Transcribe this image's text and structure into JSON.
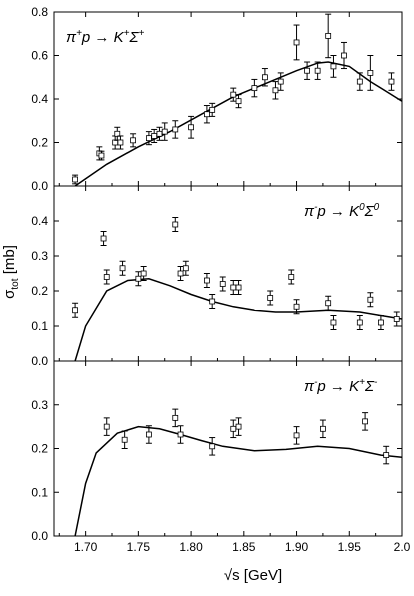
{
  "chart_data": [
    {
      "type": "scatter",
      "reaction": {
        "base": "π",
        "base_sup": "+",
        "mid": "p → K",
        "mid_sup": "+",
        "end": "Σ",
        "end_sup": "+"
      },
      "xlim": [
        1.67,
        2.0
      ],
      "ylim": [
        0,
        0.8
      ],
      "yticks": [
        "0.0",
        "0.2",
        "0.4",
        "0.6",
        "0.8"
      ],
      "series": [
        {
          "kind": "points",
          "x": [
            1.69,
            1.713,
            1.715,
            1.728,
            1.73,
            1.733,
            1.745,
            1.76,
            1.765,
            1.77,
            1.775,
            1.785,
            1.8,
            1.815,
            1.82,
            1.84,
            1.845,
            1.86,
            1.87,
            1.88,
            1.885,
            1.9,
            1.91,
            1.92,
            1.93,
            1.935,
            1.945,
            1.96,
            1.97,
            1.99
          ],
          "y": [
            0.03,
            0.15,
            0.14,
            0.2,
            0.24,
            0.2,
            0.21,
            0.22,
            0.23,
            0.24,
            0.25,
            0.26,
            0.27,
            0.33,
            0.35,
            0.42,
            0.39,
            0.45,
            0.5,
            0.44,
            0.48,
            0.66,
            0.53,
            0.53,
            0.69,
            0.55,
            0.6,
            0.48,
            0.52,
            0.48
          ],
          "err": [
            0.02,
            0.03,
            0.02,
            0.03,
            0.03,
            0.03,
            0.03,
            0.03,
            0.03,
            0.03,
            0.04,
            0.04,
            0.05,
            0.04,
            0.03,
            0.03,
            0.03,
            0.04,
            0.04,
            0.04,
            0.04,
            0.08,
            0.04,
            0.04,
            0.1,
            0.05,
            0.06,
            0.04,
            0.08,
            0.04
          ]
        },
        {
          "kind": "line",
          "x": [
            1.69,
            1.72,
            1.75,
            1.78,
            1.81,
            1.84,
            1.87,
            1.9,
            1.92,
            1.93,
            1.95,
            1.97,
            2.0
          ],
          "y": [
            0.0,
            0.1,
            0.18,
            0.25,
            0.33,
            0.41,
            0.47,
            0.53,
            0.565,
            0.57,
            0.55,
            0.48,
            0.39
          ]
        }
      ]
    },
    {
      "type": "scatter",
      "reaction": {
        "base": "π",
        "base_sup": "-",
        "mid": "p → K",
        "mid_sup": "0",
        "end": "Σ",
        "end_sup": "0"
      },
      "xlim": [
        1.67,
        2.0
      ],
      "ylim": [
        0,
        0.5
      ],
      "yticks": [
        "0.0",
        "0.1",
        "0.2",
        "0.3",
        "0.4"
      ],
      "series": [
        {
          "kind": "points",
          "x": [
            1.69,
            1.717,
            1.72,
            1.735,
            1.75,
            1.755,
            1.785,
            1.79,
            1.795,
            1.815,
            1.82,
            1.83,
            1.84,
            1.845,
            1.875,
            1.895,
            1.9,
            1.93,
            1.935,
            1.96,
            1.97,
            1.98,
            1.995
          ],
          "y": [
            0.145,
            0.35,
            0.24,
            0.265,
            0.235,
            0.25,
            0.39,
            0.25,
            0.265,
            0.23,
            0.17,
            0.22,
            0.21,
            0.21,
            0.18,
            0.24,
            0.155,
            0.165,
            0.11,
            0.11,
            0.175,
            0.11,
            0.12
          ]
        },
        {
          "kind": "line",
          "x": [
            1.69,
            1.7,
            1.72,
            1.74,
            1.76,
            1.78,
            1.8,
            1.82,
            1.84,
            1.86,
            1.88,
            1.9,
            1.93,
            1.96,
            1.99,
            2.0
          ],
          "y": [
            0.0,
            0.1,
            0.2,
            0.23,
            0.235,
            0.215,
            0.19,
            0.17,
            0.155,
            0.145,
            0.14,
            0.14,
            0.145,
            0.14,
            0.125,
            0.12
          ]
        }
      ]
    },
    {
      "type": "scatter",
      "reaction": {
        "base": "π",
        "base_sup": "-",
        "mid": "p → K",
        "mid_sup": "+",
        "end": "Σ",
        "end_sup": "-"
      },
      "xlim": [
        1.67,
        2.0
      ],
      "ylim": [
        0,
        0.4
      ],
      "yticks": [
        "0.0",
        "0.1",
        "0.2",
        "0.3"
      ],
      "series": [
        {
          "kind": "points",
          "x": [
            1.72,
            1.737,
            1.76,
            1.785,
            1.79,
            1.82,
            1.84,
            1.845,
            1.9,
            1.925,
            1.965,
            1.985
          ],
          "y": [
            0.25,
            0.22,
            0.232,
            0.27,
            0.232,
            0.205,
            0.245,
            0.25,
            0.23,
            0.245,
            0.262,
            0.185
          ]
        },
        {
          "kind": "line",
          "x": [
            1.69,
            1.7,
            1.71,
            1.73,
            1.75,
            1.77,
            1.79,
            1.81,
            1.83,
            1.86,
            1.89,
            1.92,
            1.95,
            1.98,
            2.0
          ],
          "y": [
            0.0,
            0.12,
            0.19,
            0.235,
            0.25,
            0.245,
            0.232,
            0.218,
            0.205,
            0.195,
            0.198,
            0.205,
            0.2,
            0.185,
            0.18
          ]
        }
      ]
    }
  ],
  "axes": {
    "xticks": [
      "1.70",
      "1.75",
      "1.80",
      "1.85",
      "1.90",
      "1.95",
      "2.0"
    ],
    "xlabel": "√s [GeV]",
    "ylabel_main": "σ",
    "ylabel_sub": "tot",
    "ylabel_unit": " [mb]"
  }
}
